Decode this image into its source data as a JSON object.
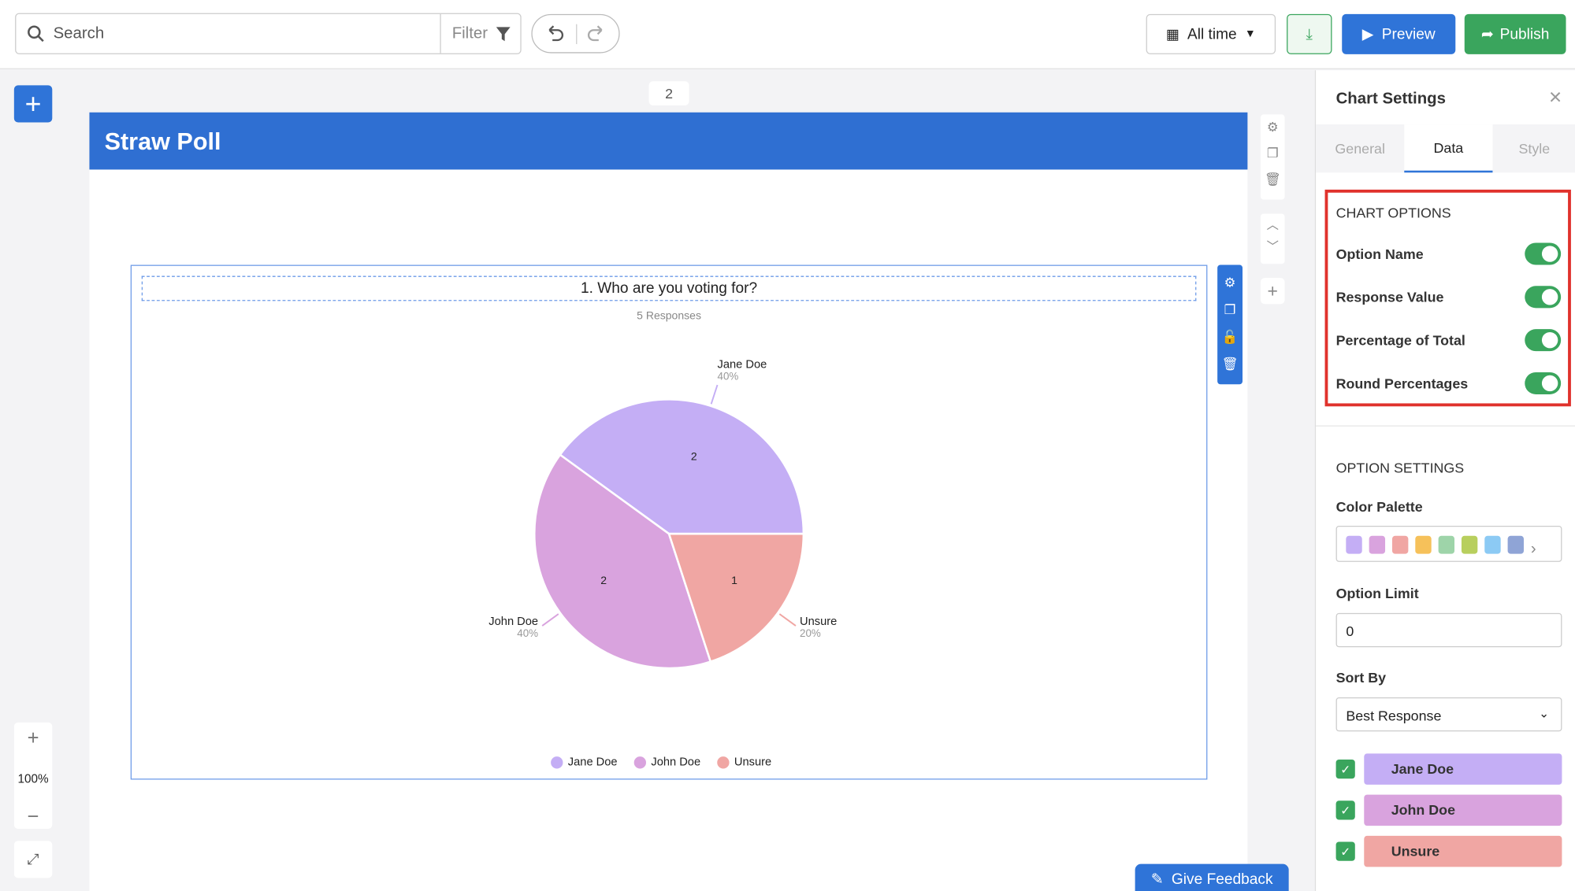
{
  "toolbar": {
    "search": "Search",
    "filter": "Filter",
    "date_range": "All time",
    "preview": "Preview",
    "publish": "Publish"
  },
  "page": {
    "number": "2",
    "title": "Straw Poll",
    "zoom": "100%",
    "feedback": "Give Feedback"
  },
  "chart_data": {
    "type": "pie",
    "title": "1. Who are you voting for?",
    "subtitle": "5 Responses",
    "categories": [
      "Jane Doe",
      "John Doe",
      "Unsure"
    ],
    "values": [
      2,
      2,
      1
    ],
    "percent_labels": [
      "40%",
      "40%",
      "20%"
    ],
    "colors": [
      "#c4aef5",
      "#d9a3de",
      "#f0a6a3"
    ],
    "legend": "bottom"
  },
  "settings": {
    "title": "Chart Settings",
    "tabs": [
      "General",
      "Data",
      "Style"
    ],
    "chart_options_heading": "CHART OPTIONS",
    "chart_options": [
      "Option Name",
      "Response Value",
      "Percentage of Total",
      "Round Percentages"
    ],
    "option_settings_heading": "OPTION SETTINGS",
    "color_palette": "Color Palette",
    "option_limit": "Option Limit",
    "option_limit_value": "0",
    "sort_by": "Sort By",
    "sort_by_value": "Best Response"
  }
}
